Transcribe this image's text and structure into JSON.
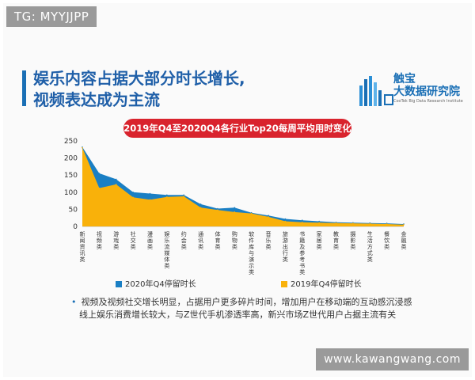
{
  "watermark_top": "TG: MYYJJPP",
  "watermark_bottom": "www.kawangwang.com",
  "heading": {
    "line1": "娱乐内容占据大部分时长增长,",
    "line2": "视频表达成为主流"
  },
  "brand": {
    "name": "触宝",
    "sub": "大数据研究院",
    "en": "CooTek Big Data Research Institute"
  },
  "banner": "2019年Q4至2020Q4各行业Top20每周平均用时变化",
  "colors": {
    "series_2020": "#1a7fc4",
    "series_2019": "#f9b10a",
    "banner": "#d9232d",
    "heading": "#1f5fa8"
  },
  "legend": {
    "s2020": "2020年Q4停留时长",
    "s2019": "2019年Q4停留时长"
  },
  "notes": [
    "视频及视频社交增长明显，占据用户更多碎片时间，增加用户在移动端的互动感沉浸感",
    "线上娱乐消费增长较大，与Z世代手机渗透率高，新兴市场Z世代用户占据主流有关"
  ],
  "chart_data": {
    "type": "area",
    "categories": [
      "新闻资讯类",
      "视频类",
      "游戏类",
      "社交类",
      "漫画类",
      "娱乐流媒体类",
      "约会类",
      "通讯类",
      "体育类",
      "购物类",
      "软件库与演示类",
      "音乐类",
      "旅游出行类",
      "书籍及参考书类",
      "家居类",
      "教育类",
      "摄影类",
      "生活方式类",
      "餐饮类",
      "金融类"
    ],
    "x_tick_labels": [
      "新闻资讯类",
      "视频类",
      "游戏类",
      "社交类",
      "漫画类",
      "娱乐流媒体类",
      "约会类",
      "通讯类",
      "体育类",
      "购物类",
      "软件库与演示类",
      "音乐类",
      "旅游出行类",
      "书籍及参考书类",
      "家居类",
      "教育类",
      "摄影类",
      "生活方式类",
      "餐饮类",
      "金融类"
    ],
    "y_ticks": [
      0,
      50,
      100,
      150,
      200,
      250
    ],
    "ylim": [
      0,
      250
    ],
    "series": [
      {
        "name": "2020年Q4停留时长",
        "values": [
          232,
          155,
          138,
          100,
          96,
          92,
          92,
          65,
          52,
          55,
          40,
          32,
          22,
          18,
          15,
          12,
          11,
          10,
          9,
          7
        ]
      },
      {
        "name": "2019年Q4停留时长",
        "values": [
          230,
          112,
          123,
          85,
          78,
          86,
          88,
          55,
          48,
          42,
          38,
          28,
          15,
          12,
          11,
          10,
          9,
          8,
          7,
          5
        ]
      }
    ],
    "legend_position": "bottom"
  }
}
